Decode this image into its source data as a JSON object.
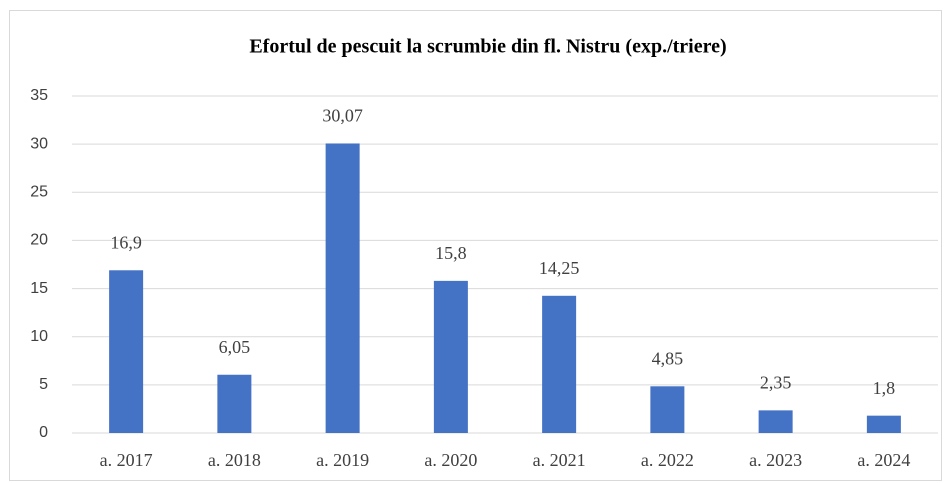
{
  "chart_data": {
    "type": "bar",
    "title": "Efortul de pescuit la scrumbie din fl. Nistru  (exp./triere)",
    "categories": [
      "a. 2017",
      "a. 2018",
      "a. 2019",
      "a. 2020",
      "a. 2021",
      "a. 2022",
      "a. 2023",
      "a. 2024"
    ],
    "values": [
      16.9,
      6.05,
      30.07,
      15.8,
      14.25,
      4.85,
      2.35,
      1.8
    ],
    "value_labels": [
      "16,9",
      "6,05",
      "30,07",
      "15,8",
      "14,25",
      "4,85",
      "2,35",
      "1,8"
    ],
    "color": "#4472c4",
    "ylim": [
      0,
      35
    ],
    "yticks": [
      0,
      5,
      10,
      15,
      20,
      25,
      30,
      35
    ],
    "grid": true
  }
}
